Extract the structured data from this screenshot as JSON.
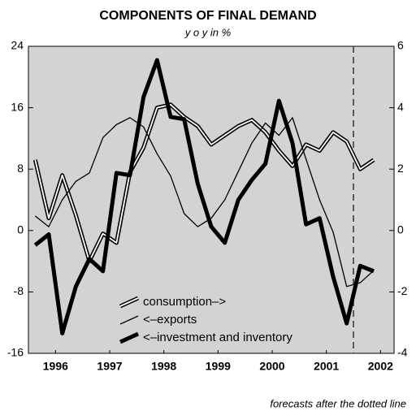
{
  "chart_data": {
    "type": "line",
    "title": "COMPONENTS OF FINAL DEMAND",
    "subtitle": "y o y in %",
    "annotation": "forecasts after the dotted line",
    "forecast_x": 2002,
    "x": [
      1996.125,
      1996.375,
      1996.625,
      1996.875,
      1997.125,
      1997.375,
      1997.625,
      1997.875,
      1998.125,
      1998.375,
      1998.625,
      1998.875,
      1999.125,
      1999.375,
      1999.625,
      1999.875,
      2000.125,
      2000.375,
      2000.625,
      2000.875,
      2001.125,
      2001.375,
      2001.625,
      2001.875,
      2002.125,
      2002.375
    ],
    "xlim": [
      1996,
      2002.75
    ],
    "xticks": [
      {
        "value": 1996.5,
        "label": "1996"
      },
      {
        "value": 1997.5,
        "label": "1997"
      },
      {
        "value": 1998.5,
        "label": "1998"
      },
      {
        "value": 1999.5,
        "label": "1999"
      },
      {
        "value": 2000.5,
        "label": "2000"
      },
      {
        "value": 2001.5,
        "label": "2001"
      },
      {
        "value": 2002.5,
        "label": "2002"
      }
    ],
    "ylim": [
      -16,
      24
    ],
    "yticks": [
      -16,
      -8,
      0,
      8,
      16,
      24
    ],
    "y2lim": [
      -4,
      6
    ],
    "y2ticks": [
      -4,
      -2,
      0,
      2,
      4,
      6
    ],
    "grid": false,
    "legend": "lower left",
    "series": [
      {
        "name": "consumption–>",
        "color": "#000000",
        "style": "double",
        "axis": "y2",
        "values": [
          2.3,
          0.4,
          1.8,
          0.5,
          -1.0,
          -0.1,
          -0.4,
          1.9,
          2.7,
          4.0,
          4.1,
          3.7,
          3.4,
          2.8,
          3.1,
          3.4,
          3.6,
          3.2,
          2.6,
          2.1,
          2.8,
          2.6,
          3.2,
          2.9,
          2.0,
          2.3
        ]
      },
      {
        "name": "<–exports",
        "color": "#000000",
        "style": "thin",
        "values": [
          1.9,
          0.5,
          4.0,
          6.4,
          7.5,
          12.1,
          13.8,
          14.7,
          13.5,
          10.0,
          7.1,
          2.2,
          0.5,
          1.6,
          4.0,
          7.7,
          11.4,
          14.0,
          12.4,
          14.7,
          9.3,
          4.0,
          -0.2,
          -7.3,
          -6.8,
          -5.2
        ]
      },
      {
        "name": "<–investment and inventory",
        "color": "#000000",
        "style": "thick",
        "values": [
          -1.9,
          -0.5,
          -13.4,
          -7.3,
          -3.7,
          -5.3,
          7.5,
          7.2,
          17.4,
          22.2,
          14.8,
          14.5,
          6.1,
          0.5,
          -1.6,
          4.0,
          6.6,
          8.7,
          16.9,
          11.4,
          0.8,
          1.6,
          -6.0,
          -12.1,
          -4.6,
          -5.3
        ]
      }
    ]
  }
}
